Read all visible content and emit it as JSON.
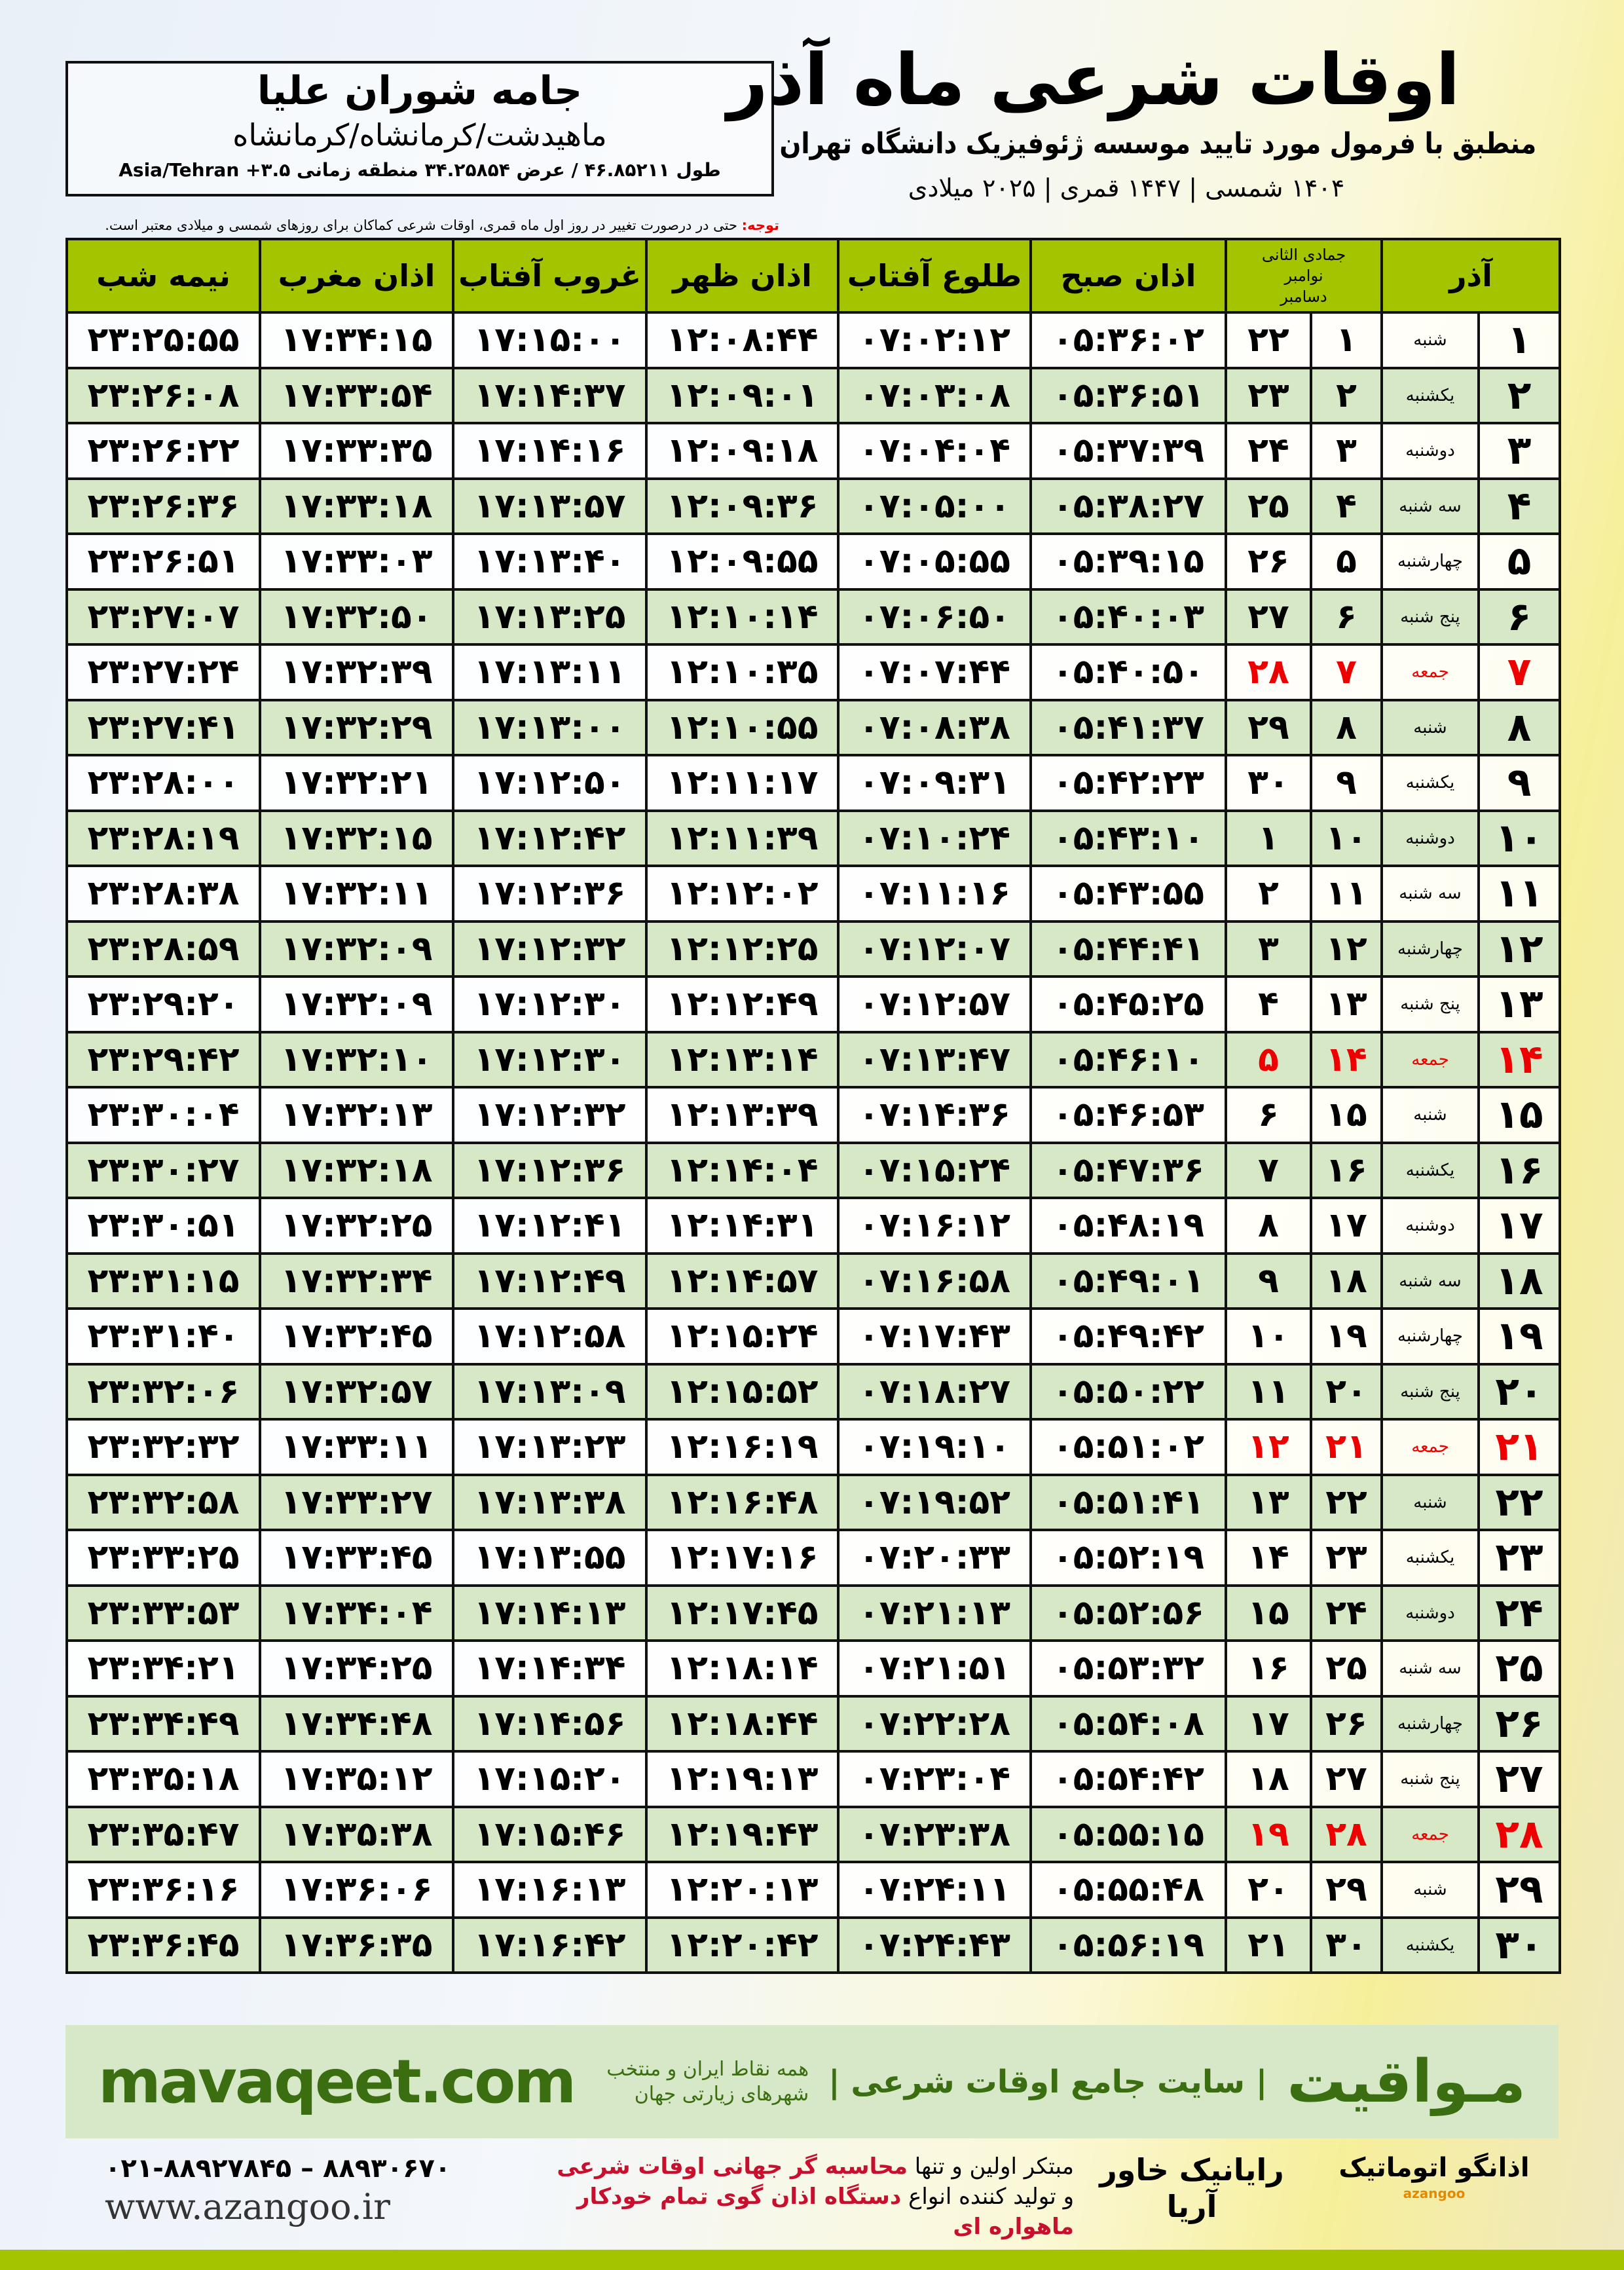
{
  "location": {
    "name": "جامه شوران علیا",
    "path": "ماهیدشت/کرمانشاه/کرمانشاه",
    "coords": "طول ۴۶.۸۵۲۱۱ / عرض ۳۴.۲۵۸۵۴ منطقه زمانی ۳.۵+ Asia/Tehran"
  },
  "header": {
    "title": "اوقات شرعی ماه آذر",
    "subtitle": "منطبق با فرمول مورد تایید موسسه ژئوفیزیک دانشگاه تهران",
    "dateline": "۱۴۰۴ شمسی | ۱۴۴۷ قمری | ۲۰۲۵ میلادی"
  },
  "note": {
    "label": "توجه:",
    "text": " حتی در درصورت تغییر در روز اول ماه قمری، اوقات شرعی کماکان برای روزهای شمسی و میلادی معتبر است."
  },
  "table": {
    "columns": {
      "day": "آذر",
      "qamari": "جمادی الثانی",
      "greg_top": "نوامبر",
      "greg_bottom": "دسامبر",
      "fajr": "اذان صبح",
      "sunrise": "طلوع آفتاب",
      "dhuhr": "اذان ظهر",
      "sunset": "غروب آفتاب",
      "maghrib": "اذان مغرب",
      "midnight": "نیمه شب"
    },
    "rows": [
      [
        "۱",
        "شنبه",
        "۱",
        "۲۲",
        "۰۵:۳۶:۰۲",
        "۰۷:۰۲:۱۲",
        "۱۲:۰۸:۴۴",
        "۱۷:۱۵:۰۰",
        "۱۷:۳۴:۱۵",
        "۲۳:۲۵:۵۵"
      ],
      [
        "۲",
        "یکشنبه",
        "۲",
        "۲۳",
        "۰۵:۳۶:۵۱",
        "۰۷:۰۳:۰۸",
        "۱۲:۰۹:۰۱",
        "۱۷:۱۴:۳۷",
        "۱۷:۳۳:۵۴",
        "۲۳:۲۶:۰۸"
      ],
      [
        "۳",
        "دوشنبه",
        "۳",
        "۲۴",
        "۰۵:۳۷:۳۹",
        "۰۷:۰۴:۰۴",
        "۱۲:۰۹:۱۸",
        "۱۷:۱۴:۱۶",
        "۱۷:۳۳:۳۵",
        "۲۳:۲۶:۲۲"
      ],
      [
        "۴",
        "سه شنبه",
        "۴",
        "۲۵",
        "۰۵:۳۸:۲۷",
        "۰۷:۰۵:۰۰",
        "۱۲:۰۹:۳۶",
        "۱۷:۱۳:۵۷",
        "۱۷:۳۳:۱۸",
        "۲۳:۲۶:۳۶"
      ],
      [
        "۵",
        "چهارشنبه",
        "۵",
        "۲۶",
        "۰۵:۳۹:۱۵",
        "۰۷:۰۵:۵۵",
        "۱۲:۰۹:۵۵",
        "۱۷:۱۳:۴۰",
        "۱۷:۳۳:۰۳",
        "۲۳:۲۶:۵۱"
      ],
      [
        "۶",
        "پنج شنبه",
        "۶",
        "۲۷",
        "۰۵:۴۰:۰۳",
        "۰۷:۰۶:۵۰",
        "۱۲:۱۰:۱۴",
        "۱۷:۱۳:۲۵",
        "۱۷:۳۲:۵۰",
        "۲۳:۲۷:۰۷"
      ],
      [
        "۷",
        "جمعه",
        "۷",
        "۲۸",
        "۰۵:۴۰:۵۰",
        "۰۷:۰۷:۴۴",
        "۱۲:۱۰:۳۵",
        "۱۷:۱۳:۱۱",
        "۱۷:۳۲:۳۹",
        "۲۳:۲۷:۲۴"
      ],
      [
        "۸",
        "شنبه",
        "۸",
        "۲۹",
        "۰۵:۴۱:۳۷",
        "۰۷:۰۸:۳۸",
        "۱۲:۱۰:۵۵",
        "۱۷:۱۳:۰۰",
        "۱۷:۳۲:۲۹",
        "۲۳:۲۷:۴۱"
      ],
      [
        "۹",
        "یکشنبه",
        "۹",
        "۳۰",
        "۰۵:۴۲:۲۳",
        "۰۷:۰۹:۳۱",
        "۱۲:۱۱:۱۷",
        "۱۷:۱۲:۵۰",
        "۱۷:۳۲:۲۱",
        "۲۳:۲۸:۰۰"
      ],
      [
        "۱۰",
        "دوشنبه",
        "۱۰",
        "۱",
        "۰۵:۴۳:۱۰",
        "۰۷:۱۰:۲۴",
        "۱۲:۱۱:۳۹",
        "۱۷:۱۲:۴۲",
        "۱۷:۳۲:۱۵",
        "۲۳:۲۸:۱۹"
      ],
      [
        "۱۱",
        "سه شنبه",
        "۱۱",
        "۲",
        "۰۵:۴۳:۵۵",
        "۰۷:۱۱:۱۶",
        "۱۲:۱۲:۰۲",
        "۱۷:۱۲:۳۶",
        "۱۷:۳۲:۱۱",
        "۲۳:۲۸:۳۸"
      ],
      [
        "۱۲",
        "چهارشنبه",
        "۱۲",
        "۳",
        "۰۵:۴۴:۴۱",
        "۰۷:۱۲:۰۷",
        "۱۲:۱۲:۲۵",
        "۱۷:۱۲:۳۲",
        "۱۷:۳۲:۰۹",
        "۲۳:۲۸:۵۹"
      ],
      [
        "۱۳",
        "پنج شنبه",
        "۱۳",
        "۴",
        "۰۵:۴۵:۲۵",
        "۰۷:۱۲:۵۷",
        "۱۲:۱۲:۴۹",
        "۱۷:۱۲:۳۰",
        "۱۷:۳۲:۰۹",
        "۲۳:۲۹:۲۰"
      ],
      [
        "۱۴",
        "جمعه",
        "۱۴",
        "۵",
        "۰۵:۴۶:۱۰",
        "۰۷:۱۳:۴۷",
        "۱۲:۱۳:۱۴",
        "۱۷:۱۲:۳۰",
        "۱۷:۳۲:۱۰",
        "۲۳:۲۹:۴۲"
      ],
      [
        "۱۵",
        "شنبه",
        "۱۵",
        "۶",
        "۰۵:۴۶:۵۳",
        "۰۷:۱۴:۳۶",
        "۱۲:۱۳:۳۹",
        "۱۷:۱۲:۳۲",
        "۱۷:۳۲:۱۳",
        "۲۳:۳۰:۰۴"
      ],
      [
        "۱۶",
        "یکشنبه",
        "۱۶",
        "۷",
        "۰۵:۴۷:۳۶",
        "۰۷:۱۵:۲۴",
        "۱۲:۱۴:۰۴",
        "۱۷:۱۲:۳۶",
        "۱۷:۳۲:۱۸",
        "۲۳:۳۰:۲۷"
      ],
      [
        "۱۷",
        "دوشنبه",
        "۱۷",
        "۸",
        "۰۵:۴۸:۱۹",
        "۰۷:۱۶:۱۲",
        "۱۲:۱۴:۳۱",
        "۱۷:۱۲:۴۱",
        "۱۷:۳۲:۲۵",
        "۲۳:۳۰:۵۱"
      ],
      [
        "۱۸",
        "سه شنبه",
        "۱۸",
        "۹",
        "۰۵:۴۹:۰۱",
        "۰۷:۱۶:۵۸",
        "۱۲:۱۴:۵۷",
        "۱۷:۱۲:۴۹",
        "۱۷:۳۲:۳۴",
        "۲۳:۳۱:۱۵"
      ],
      [
        "۱۹",
        "چهارشنبه",
        "۱۹",
        "۱۰",
        "۰۵:۴۹:۴۲",
        "۰۷:۱۷:۴۳",
        "۱۲:۱۵:۲۴",
        "۱۷:۱۲:۵۸",
        "۱۷:۳۲:۴۵",
        "۲۳:۳۱:۴۰"
      ],
      [
        "۲۰",
        "پنج شنبه",
        "۲۰",
        "۱۱",
        "۰۵:۵۰:۲۲",
        "۰۷:۱۸:۲۷",
        "۱۲:۱۵:۵۲",
        "۱۷:۱۳:۰۹",
        "۱۷:۳۲:۵۷",
        "۲۳:۳۲:۰۶"
      ],
      [
        "۲۱",
        "جمعه",
        "۲۱",
        "۱۲",
        "۰۵:۵۱:۰۲",
        "۰۷:۱۹:۱۰",
        "۱۲:۱۶:۱۹",
        "۱۷:۱۳:۲۳",
        "۱۷:۳۳:۱۱",
        "۲۳:۳۲:۳۲"
      ],
      [
        "۲۲",
        "شنبه",
        "۲۲",
        "۱۳",
        "۰۵:۵۱:۴۱",
        "۰۷:۱۹:۵۲",
        "۱۲:۱۶:۴۸",
        "۱۷:۱۳:۳۸",
        "۱۷:۳۳:۲۷",
        "۲۳:۳۲:۵۸"
      ],
      [
        "۲۳",
        "یکشنبه",
        "۲۳",
        "۱۴",
        "۰۵:۵۲:۱۹",
        "۰۷:۲۰:۳۳",
        "۱۲:۱۷:۱۶",
        "۱۷:۱۳:۵۵",
        "۱۷:۳۳:۴۵",
        "۲۳:۳۳:۲۵"
      ],
      [
        "۲۴",
        "دوشنبه",
        "۲۴",
        "۱۵",
        "۰۵:۵۲:۵۶",
        "۰۷:۲۱:۱۳",
        "۱۲:۱۷:۴۵",
        "۱۷:۱۴:۱۳",
        "۱۷:۳۴:۰۴",
        "۲۳:۳۳:۵۳"
      ],
      [
        "۲۵",
        "سه شنبه",
        "۲۵",
        "۱۶",
        "۰۵:۵۳:۳۲",
        "۰۷:۲۱:۵۱",
        "۱۲:۱۸:۱۴",
        "۱۷:۱۴:۳۴",
        "۱۷:۳۴:۲۵",
        "۲۳:۳۴:۲۱"
      ],
      [
        "۲۶",
        "چهارشنبه",
        "۲۶",
        "۱۷",
        "۰۵:۵۴:۰۸",
        "۰۷:۲۲:۲۸",
        "۱۲:۱۸:۴۴",
        "۱۷:۱۴:۵۶",
        "۱۷:۳۴:۴۸",
        "۲۳:۳۴:۴۹"
      ],
      [
        "۲۷",
        "پنج شنبه",
        "۲۷",
        "۱۸",
        "۰۵:۵۴:۴۲",
        "۰۷:۲۳:۰۴",
        "۱۲:۱۹:۱۳",
        "۱۷:۱۵:۲۰",
        "۱۷:۳۵:۱۲",
        "۲۳:۳۵:۱۸"
      ],
      [
        "۲۸",
        "جمعه",
        "۲۸",
        "۱۹",
        "۰۵:۵۵:۱۵",
        "۰۷:۲۳:۳۸",
        "۱۲:۱۹:۴۳",
        "۱۷:۱۵:۴۶",
        "۱۷:۳۵:۳۸",
        "۲۳:۳۵:۴۷"
      ],
      [
        "۲۹",
        "شنبه",
        "۲۹",
        "۲۰",
        "۰۵:۵۵:۴۸",
        "۰۷:۲۴:۱۱",
        "۱۲:۲۰:۱۳",
        "۱۷:۱۶:۱۳",
        "۱۷:۳۶:۰۶",
        "۲۳:۳۶:۱۶"
      ],
      [
        "۳۰",
        "یکشنبه",
        "۳۰",
        "۲۱",
        "۰۵:۵۶:۱۹",
        "۰۷:۲۴:۴۳",
        "۱۲:۲۰:۴۲",
        "۱۷:۱۶:۴۲",
        "۱۷:۳۶:۳۵",
        "۲۳:۳۶:۴۵"
      ]
    ],
    "holiday_weekday": "جمعه"
  },
  "footer": {
    "site": "mavaqeet.com",
    "brand": "مـواقیت",
    "brand_sub": "| سایت جامع اوقات شرعی |",
    "brand_tag": "همه نقاط ایران و منتخب شهرهای زیارتی جهان",
    "phones": "۰۲۱-۸۸۹۲۷۸۴۵ – ۸۸۹۳۰۶۷۰",
    "www": "www.azangoo.ir",
    "promo1a": "مبتکر اولین و تنها ",
    "promo1b": "محاسبه گر جهانی اوقات شرعی",
    "promo2a": "و تولید کننده انواع ",
    "promo2b": "دستگاه اذان گوی تمام خودکار ماهواره ای",
    "logo_rayanik": "رایانیک خاور آریا",
    "logo_azangoo": "اذانگو اتوماتیک",
    "logo_azangoo_en": "azangoo"
  },
  "colors": {
    "header_green": "#a4c400",
    "row_green": "#d6e8c6",
    "holiday_red": "#e00000",
    "brand_green": "#3b6d11"
  }
}
